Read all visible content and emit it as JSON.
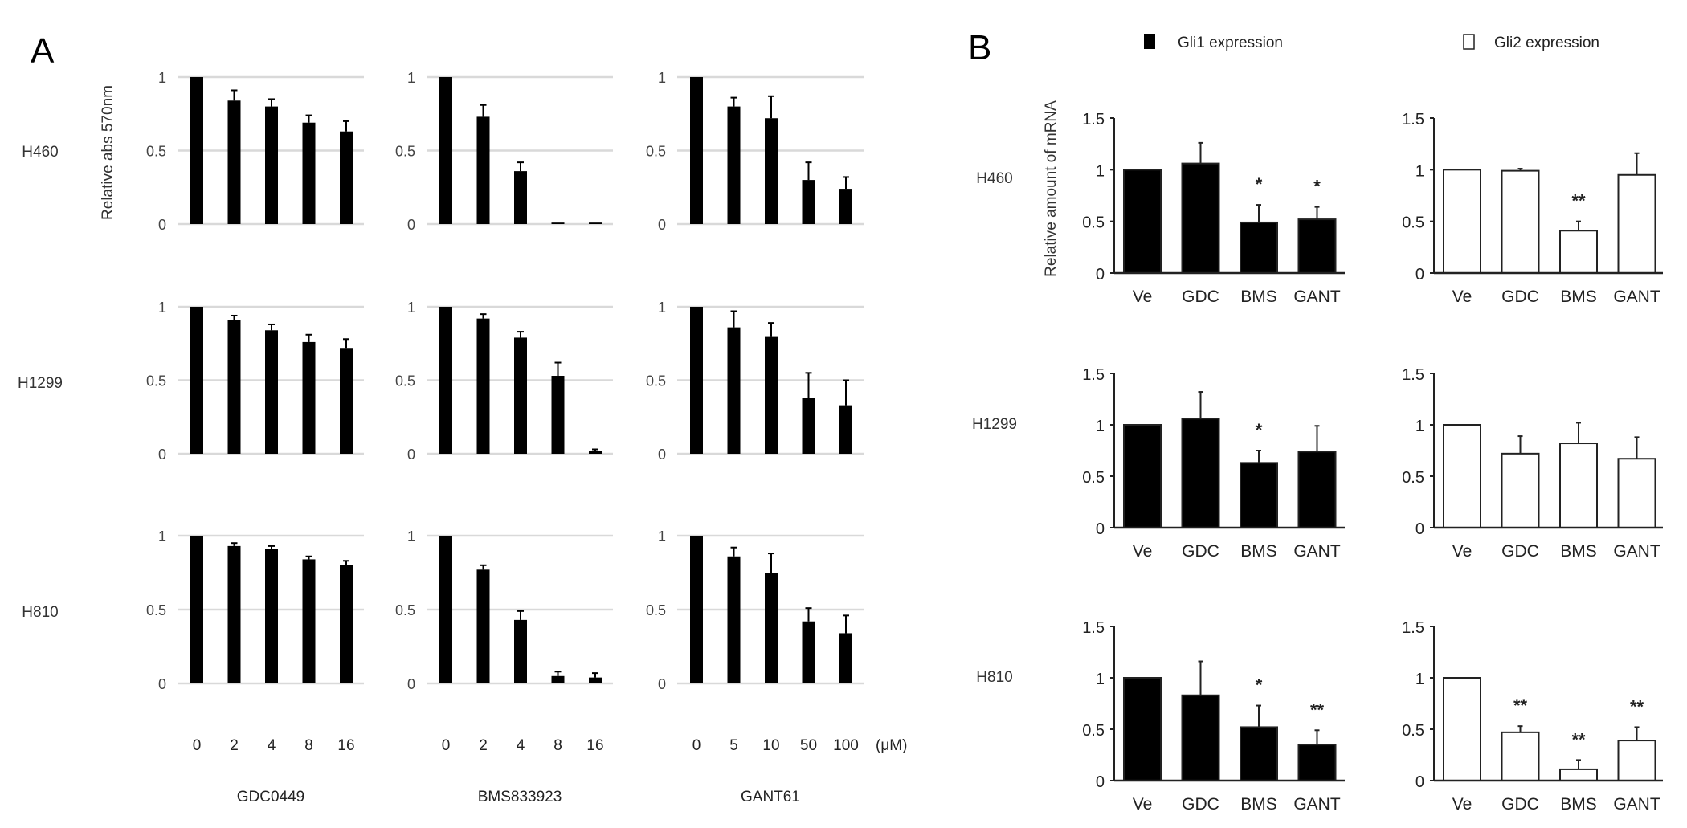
{
  "labels": {
    "panel_a": "A",
    "panel_b": "B",
    "cell_lines": [
      "H460",
      "H1299",
      "H810"
    ],
    "ylabel_a": "Relative abs 570nm",
    "ylabel_b": "Relative amount of mRNA",
    "unit": "(μM)",
    "legend_gli1": "Gli1 expression",
    "legend_gli2": "Gli2 expression"
  },
  "colors": {
    "gli1": "#000000",
    "gli2": "#ffffff",
    "grid": "#d9d9d9",
    "bar_a": "#000000"
  },
  "chart_data": [
    {
      "panel": "A",
      "type": "bar",
      "cell_line": "H460",
      "drug": "GDC0449",
      "categories": [
        "0",
        "2",
        "4",
        "8",
        "16"
      ],
      "values": [
        1,
        0.84,
        0.8,
        0.69,
        0.63
      ],
      "errors": [
        0,
        0.07,
        0.05,
        0.05,
        0.07
      ],
      "ylim": [
        0,
        1
      ],
      "yticks": [
        "0",
        "0.5",
        "1"
      ],
      "grid": true
    },
    {
      "panel": "A",
      "type": "bar",
      "cell_line": "H460",
      "drug": "BMS833923",
      "categories": [
        "0",
        "2",
        "4",
        "8",
        "16"
      ],
      "values": [
        1,
        0.73,
        0.36,
        0.01,
        0.01
      ],
      "errors": [
        0,
        0.08,
        0.06,
        0,
        0
      ],
      "ylim": [
        0,
        1
      ],
      "yticks": [
        "0",
        "0.5",
        "1"
      ],
      "grid": true
    },
    {
      "panel": "A",
      "type": "bar",
      "cell_line": "H460",
      "drug": "GANT61",
      "categories": [
        "0",
        "5",
        "10",
        "50",
        "100"
      ],
      "values": [
        1,
        0.8,
        0.72,
        0.3,
        0.24
      ],
      "errors": [
        0,
        0.06,
        0.15,
        0.12,
        0.08
      ],
      "ylim": [
        0,
        1
      ],
      "yticks": [
        "0",
        "0.5",
        "1"
      ],
      "grid": true
    },
    {
      "panel": "A",
      "type": "bar",
      "cell_line": "H1299",
      "drug": "GDC0449",
      "categories": [
        "0",
        "2",
        "4",
        "8",
        "16"
      ],
      "values": [
        1,
        0.91,
        0.84,
        0.76,
        0.72
      ],
      "errors": [
        0,
        0.03,
        0.04,
        0.05,
        0.06
      ],
      "ylim": [
        0,
        1
      ],
      "yticks": [
        "0",
        "0.5",
        "1"
      ],
      "grid": true
    },
    {
      "panel": "A",
      "type": "bar",
      "cell_line": "H1299",
      "drug": "BMS833923",
      "categories": [
        "0",
        "2",
        "4",
        "8",
        "16"
      ],
      "values": [
        1,
        0.92,
        0.79,
        0.53,
        0.02
      ],
      "errors": [
        0,
        0.03,
        0.04,
        0.09,
        0.01
      ],
      "ylim": [
        0,
        1
      ],
      "yticks": [
        "0",
        "0.5",
        "1"
      ],
      "grid": true
    },
    {
      "panel": "A",
      "type": "bar",
      "cell_line": "H1299",
      "drug": "GANT61",
      "categories": [
        "0",
        "5",
        "10",
        "50",
        "100"
      ],
      "values": [
        1,
        0.86,
        0.8,
        0.38,
        0.33
      ],
      "errors": [
        0,
        0.11,
        0.09,
        0.17,
        0.17
      ],
      "ylim": [
        0,
        1
      ],
      "yticks": [
        "0",
        "0.5",
        "1"
      ],
      "grid": true
    },
    {
      "panel": "A",
      "type": "bar",
      "cell_line": "H810",
      "drug": "GDC0449",
      "categories": [
        "0",
        "2",
        "4",
        "8",
        "16"
      ],
      "values": [
        1,
        0.93,
        0.91,
        0.84,
        0.8
      ],
      "errors": [
        0,
        0.02,
        0.02,
        0.02,
        0.03
      ],
      "ylim": [
        0,
        1
      ],
      "yticks": [
        "0",
        "0.5",
        "1"
      ],
      "grid": true
    },
    {
      "panel": "A",
      "type": "bar",
      "cell_line": "H810",
      "drug": "BMS833923",
      "categories": [
        "0",
        "2",
        "4",
        "8",
        "16"
      ],
      "values": [
        1,
        0.77,
        0.43,
        0.05,
        0.04
      ],
      "errors": [
        0,
        0.03,
        0.06,
        0.03,
        0.03
      ],
      "ylim": [
        0,
        1
      ],
      "yticks": [
        "0",
        "0.5",
        "1"
      ],
      "grid": true
    },
    {
      "panel": "A",
      "type": "bar",
      "cell_line": "H810",
      "drug": "GANT61",
      "categories": [
        "0",
        "5",
        "10",
        "50",
        "100"
      ],
      "values": [
        1,
        0.86,
        0.75,
        0.42,
        0.34
      ],
      "errors": [
        0,
        0.06,
        0.13,
        0.09,
        0.12
      ],
      "ylim": [
        0,
        1
      ],
      "yticks": [
        "0",
        "0.5",
        "1"
      ],
      "grid": true
    },
    {
      "panel": "B",
      "type": "bar",
      "cell_line": "H460",
      "series": "Gli1 expression",
      "categories": [
        "Ve",
        "GDC",
        "BMS",
        "GANT"
      ],
      "values": [
        1,
        1.06,
        0.49,
        0.52
      ],
      "errors": [
        0,
        0.2,
        0.17,
        0.12
      ],
      "significance": [
        "",
        "",
        "*",
        "*"
      ],
      "ylim": [
        0,
        1.5
      ],
      "yticks": [
        "0",
        "0.5",
        "1",
        "1.5"
      ],
      "grid": false
    },
    {
      "panel": "B",
      "type": "bar",
      "cell_line": "H460",
      "series": "Gli2 expression",
      "categories": [
        "Ve",
        "GDC",
        "BMS",
        "GANT"
      ],
      "values": [
        1,
        0.99,
        0.41,
        0.95
      ],
      "errors": [
        0,
        0.02,
        0.09,
        0.21
      ],
      "significance": [
        "",
        "",
        "**",
        ""
      ],
      "ylim": [
        0,
        1.5
      ],
      "yticks": [
        "0",
        "0.5",
        "1",
        "1.5"
      ],
      "grid": false
    },
    {
      "panel": "B",
      "type": "bar",
      "cell_line": "H1299",
      "series": "Gli1 expression",
      "categories": [
        "Ve",
        "GDC",
        "BMS",
        "GANT"
      ],
      "values": [
        1,
        1.06,
        0.63,
        0.74
      ],
      "errors": [
        0,
        0.26,
        0.12,
        0.25
      ],
      "significance": [
        "",
        "",
        "*",
        ""
      ],
      "ylim": [
        0,
        1.5
      ],
      "yticks": [
        "0",
        "0.5",
        "1",
        "1.5"
      ],
      "grid": false
    },
    {
      "panel": "B",
      "type": "bar",
      "cell_line": "H1299",
      "series": "Gli2 expression",
      "categories": [
        "Ve",
        "GDC",
        "BMS",
        "GANT"
      ],
      "values": [
        1,
        0.72,
        0.82,
        0.67
      ],
      "errors": [
        0,
        0.17,
        0.2,
        0.21
      ],
      "significance": [
        "",
        "",
        "",
        ""
      ],
      "ylim": [
        0,
        1.5
      ],
      "yticks": [
        "0",
        "0.5",
        "1",
        "1.5"
      ],
      "grid": false
    },
    {
      "panel": "B",
      "type": "bar",
      "cell_line": "H810",
      "series": "Gli1 expression",
      "categories": [
        "Ve",
        "GDC",
        "BMS",
        "GANT"
      ],
      "values": [
        1,
        0.83,
        0.52,
        0.35
      ],
      "errors": [
        0,
        0.33,
        0.21,
        0.14
      ],
      "significance": [
        "",
        "",
        "*",
        "**"
      ],
      "ylim": [
        0,
        1.5
      ],
      "yticks": [
        "0",
        "0.5",
        "1",
        "1.5"
      ],
      "grid": false
    },
    {
      "panel": "B",
      "type": "bar",
      "cell_line": "H810",
      "series": "Gli2 expression",
      "categories": [
        "Ve",
        "GDC",
        "BMS",
        "GANT"
      ],
      "values": [
        1,
        0.47,
        0.11,
        0.39
      ],
      "errors": [
        0,
        0.06,
        0.09,
        0.13
      ],
      "significance": [
        "",
        "**",
        "**",
        "**"
      ],
      "ylim": [
        0,
        1.5
      ],
      "yticks": [
        "0",
        "0.5",
        "1",
        "1.5"
      ],
      "grid": false
    }
  ]
}
